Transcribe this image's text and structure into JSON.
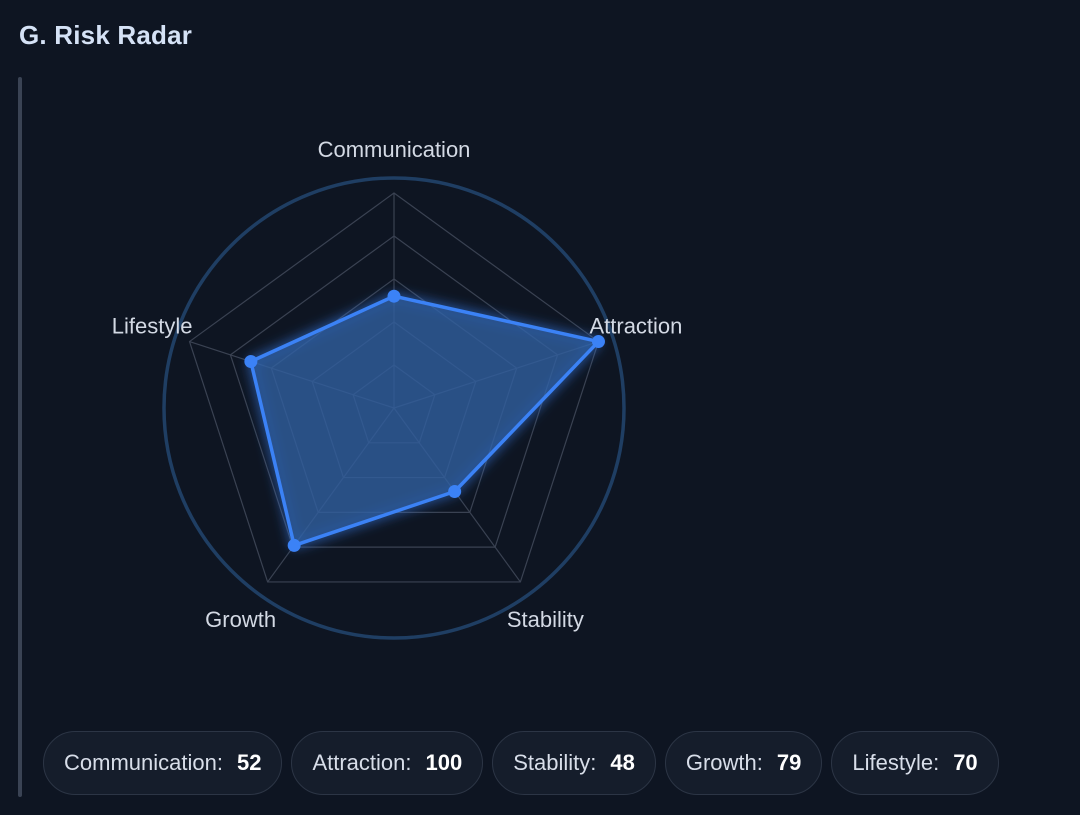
{
  "section": {
    "title": "G. Risk Radar"
  },
  "colors": {
    "background": "#0e1522",
    "accent": "#3b82f6",
    "grid": "#3a4252",
    "outer_ring": "#1f3e63",
    "fill": "#2f5f9e"
  },
  "chart_data": {
    "type": "radar",
    "title": "",
    "axes": [
      "Communication",
      "Attraction",
      "Stability",
      "Growth",
      "Lifestyle"
    ],
    "series": [
      {
        "values": [
          52,
          100,
          48,
          79,
          70
        ]
      }
    ],
    "range": [
      0,
      100
    ],
    "grid_levels": 5,
    "grid": true
  },
  "chips": [
    {
      "label": "Communication:",
      "value": "52"
    },
    {
      "label": "Attraction:",
      "value": "100"
    },
    {
      "label": "Stability:",
      "value": "48"
    },
    {
      "label": "Growth:",
      "value": "79"
    },
    {
      "label": "Lifestyle:",
      "value": "70"
    }
  ]
}
